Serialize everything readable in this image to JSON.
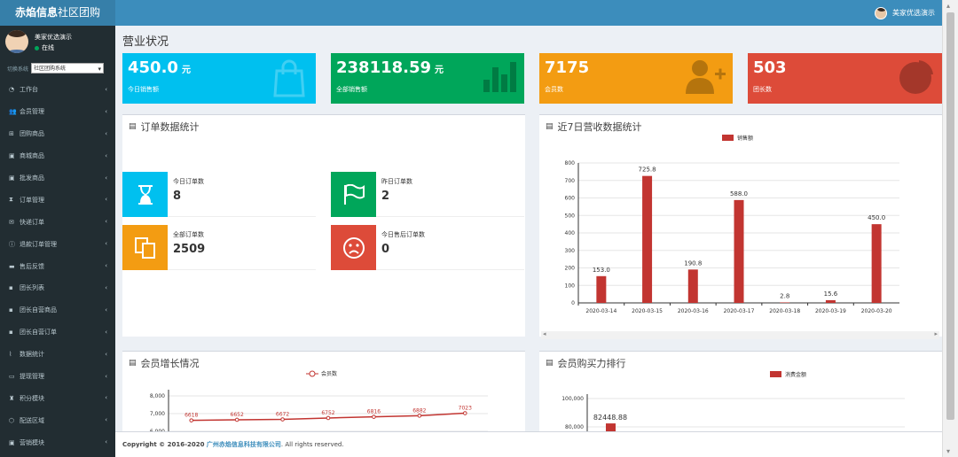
{
  "header": {
    "logo_bold": "赤焰信息",
    "logo_rest": "社区团购",
    "user_name": "美家优选演示"
  },
  "sidebar": {
    "user_name": "美家优选演示",
    "status": "在线",
    "switch_label": "切换系统",
    "switch_value": "社区团购系统",
    "items": [
      {
        "label": "工作台",
        "icon": "dashboard-icon"
      },
      {
        "label": "会员管理",
        "icon": "users-icon"
      },
      {
        "label": "团购商品",
        "icon": "sitemap-icon"
      },
      {
        "label": "商城商品",
        "icon": "box-icon"
      },
      {
        "label": "批发商品",
        "icon": "box-icon"
      },
      {
        "label": "订单管理",
        "icon": "hourglass-icon"
      },
      {
        "label": "快递订单",
        "icon": "envelope-icon"
      },
      {
        "label": "退款订单管理",
        "icon": "info-icon"
      },
      {
        "label": "售后反馈",
        "icon": "comment-icon"
      },
      {
        "label": "团长列表",
        "icon": "user-icon"
      },
      {
        "label": "团长自营商品",
        "icon": "user-plus-icon"
      },
      {
        "label": "团长自营订单",
        "icon": "user-plus-icon"
      },
      {
        "label": "数据统计",
        "icon": "chart-icon"
      },
      {
        "label": "提现管理",
        "icon": "wallet-icon"
      },
      {
        "label": "积分模块",
        "icon": "trophy-icon"
      },
      {
        "label": "配送区域",
        "icon": "map-icon"
      },
      {
        "label": "营销模块",
        "icon": "gift-icon"
      }
    ]
  },
  "main": {
    "title": "营业状况",
    "boxes": [
      {
        "value": "450.0",
        "unit": "元",
        "label": "今日销售额",
        "color": "#00c0ef"
      },
      {
        "value": "238118.59",
        "unit": "元",
        "label": "全部销售额",
        "color": "#00a65a"
      },
      {
        "value": "7175",
        "unit": "",
        "label": "会员数",
        "color": "#f39c12"
      },
      {
        "value": "503",
        "unit": "",
        "label": "团长数",
        "color": "#dd4b39"
      }
    ],
    "order_panel": {
      "title": "订单数据统计",
      "stats": [
        {
          "label": "今日订单数",
          "value": "8",
          "color": "#00c0ef"
        },
        {
          "label": "昨日订单数",
          "value": "2",
          "color": "#00a65a"
        },
        {
          "label": "全部订单数",
          "value": "2509",
          "color": "#f39c12"
        },
        {
          "label": "今日售后订单数",
          "value": "0",
          "color": "#dd4b39"
        }
      ]
    },
    "sales_panel": {
      "title": "近7日营收数据统计"
    },
    "member_panel": {
      "title": "会员增长情况"
    },
    "rank_panel": {
      "title": "会员购买力排行"
    }
  },
  "footer": {
    "prefix": "Copyright © 2016-2020 ",
    "company": "广州赤焰信息科技有限公司",
    "suffix": ". All rights reserved."
  },
  "chart_data": [
    {
      "type": "bar",
      "legend": [
        "销售额"
      ],
      "categories": [
        "2020-03-14",
        "2020-03-15",
        "2020-03-16",
        "2020-03-17",
        "2020-03-18",
        "2020-03-19",
        "2020-03-20"
      ],
      "series": [
        {
          "name": "销售额",
          "values": [
            153.0,
            725.8,
            190.8,
            588.0,
            2.8,
            15.6,
            450.0
          ]
        }
      ],
      "labels": [
        "153.0",
        "725.8",
        "190.8",
        "588.0",
        "2.8",
        "15.6",
        "450.0"
      ],
      "ylim": [
        0,
        800
      ],
      "yticks": [
        "0",
        "100",
        "200",
        "300",
        "400",
        "500",
        "600",
        "700",
        "800"
      ],
      "color": "#c23531"
    },
    {
      "type": "line",
      "legend": [
        "会员数"
      ],
      "series": [
        {
          "name": "会员数",
          "values": [
            6618,
            6652,
            6672,
            6752,
            6816,
            6882,
            7023
          ]
        }
      ],
      "labels": [
        "6618",
        "6652",
        "6672",
        "6752",
        "6816",
        "6882",
        "7023"
      ],
      "yticks": [
        "8,000",
        "7,000",
        "6,000"
      ],
      "color": "#c23531"
    },
    {
      "type": "bar",
      "legend": [
        "消费金额"
      ],
      "series": [
        {
          "name": "消费金额",
          "values": [
            82448.88
          ]
        }
      ],
      "labels": [
        "82448.88"
      ],
      "yticks": [
        "100,000",
        "80,000"
      ],
      "color": "#c23531"
    }
  ]
}
